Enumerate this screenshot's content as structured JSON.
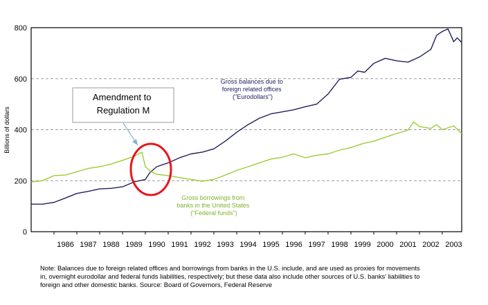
{
  "chart_data": {
    "type": "line",
    "ylabel": "Billions of dollars",
    "ylim": [
      0,
      800
    ],
    "yticks": [
      0,
      200,
      400,
      600,
      800
    ],
    "x_range": [
      1985.0,
      2003.85
    ],
    "x_ticks": [
      "1986",
      "1987",
      "1988",
      "1989",
      "1990",
      "1991",
      "1992",
      "1993",
      "1994",
      "1995",
      "1996",
      "1997",
      "1998",
      "1999",
      "2000",
      "2001",
      "2002",
      "2003"
    ],
    "grid": "horizontal-dashed",
    "series": [
      {
        "name": "Gross balances due to foreign related offices (\"Eurodollars\")",
        "label_lines": [
          "Gross balances due to",
          "foreign related offices",
          "(\"Eurodollars\")"
        ],
        "color": "#1f1f5e",
        "points": [
          [
            1985.0,
            108
          ],
          [
            1985.5,
            108
          ],
          [
            1986.0,
            115
          ],
          [
            1986.5,
            132
          ],
          [
            1987.0,
            150
          ],
          [
            1987.5,
            158
          ],
          [
            1988.0,
            168
          ],
          [
            1988.5,
            170
          ],
          [
            1989.0,
            176
          ],
          [
            1989.5,
            195
          ],
          [
            1990.0,
            205
          ],
          [
            1990.2,
            232
          ],
          [
            1990.5,
            255
          ],
          [
            1991.0,
            270
          ],
          [
            1991.5,
            290
          ],
          [
            1992.0,
            305
          ],
          [
            1992.5,
            312
          ],
          [
            1993.0,
            325
          ],
          [
            1993.5,
            355
          ],
          [
            1994.0,
            390
          ],
          [
            1994.5,
            420
          ],
          [
            1995.0,
            445
          ],
          [
            1995.5,
            462
          ],
          [
            1996.0,
            470
          ],
          [
            1996.5,
            478
          ],
          [
            1997.0,
            490
          ],
          [
            1997.5,
            500
          ],
          [
            1998.0,
            540
          ],
          [
            1998.5,
            598
          ],
          [
            1999.0,
            605
          ],
          [
            1999.3,
            630
          ],
          [
            1999.6,
            625
          ],
          [
            2000.0,
            660
          ],
          [
            2000.5,
            680
          ],
          [
            2001.0,
            670
          ],
          [
            2001.5,
            665
          ],
          [
            2002.0,
            685
          ],
          [
            2002.5,
            715
          ],
          [
            2002.75,
            770
          ],
          [
            2003.0,
            785
          ],
          [
            2003.25,
            795
          ],
          [
            2003.5,
            745
          ],
          [
            2003.65,
            760
          ],
          [
            2003.85,
            742
          ]
        ]
      },
      {
        "name": "Gross borrowings from banks in the United States (\"Federal funds\")",
        "label_lines": [
          "Gross borrowings from",
          "banks in the United States",
          "(\"Federal funds\")"
        ],
        "color": "#9acd32",
        "points": [
          [
            1985.0,
            195
          ],
          [
            1985.5,
            200
          ],
          [
            1986.0,
            220
          ],
          [
            1986.5,
            222
          ],
          [
            1987.0,
            235
          ],
          [
            1987.5,
            248
          ],
          [
            1988.0,
            255
          ],
          [
            1988.5,
            265
          ],
          [
            1989.0,
            280
          ],
          [
            1989.5,
            295
          ],
          [
            1989.85,
            312
          ],
          [
            1990.0,
            255
          ],
          [
            1990.25,
            235
          ],
          [
            1990.5,
            225
          ],
          [
            1991.0,
            220
          ],
          [
            1991.5,
            212
          ],
          [
            1992.0,
            205
          ],
          [
            1992.5,
            198
          ],
          [
            1993.0,
            205
          ],
          [
            1993.5,
            222
          ],
          [
            1994.0,
            240
          ],
          [
            1994.5,
            255
          ],
          [
            1995.0,
            270
          ],
          [
            1995.5,
            285
          ],
          [
            1996.0,
            292
          ],
          [
            1996.5,
            305
          ],
          [
            1997.0,
            290
          ],
          [
            1997.5,
            300
          ],
          [
            1998.0,
            305
          ],
          [
            1998.5,
            320
          ],
          [
            1999.0,
            330
          ],
          [
            1999.5,
            345
          ],
          [
            2000.0,
            355
          ],
          [
            2000.5,
            370
          ],
          [
            2001.0,
            385
          ],
          [
            2001.5,
            398
          ],
          [
            2001.75,
            430
          ],
          [
            2002.0,
            412
          ],
          [
            2002.5,
            405
          ],
          [
            2002.75,
            420
          ],
          [
            2003.0,
            400
          ],
          [
            2003.5,
            415
          ],
          [
            2003.85,
            385
          ]
        ]
      }
    ],
    "annotations": {
      "callout_lines": [
        "Amendment to",
        "Regulation M"
      ],
      "highlight": "circle around 1990 crossover"
    }
  },
  "note_lines": [
    "Note: Balances due to foreign related offices and borrowings from banks in the U.S. include, and are used as proxies for movements",
    "in, overnight eurodollar and federal funds liabilities, respectively; but these data also include other sources of U.S. banks' liabilities to",
    "foreign and other domestic banks.  Source: Board of Governors, Federal Reserve"
  ]
}
